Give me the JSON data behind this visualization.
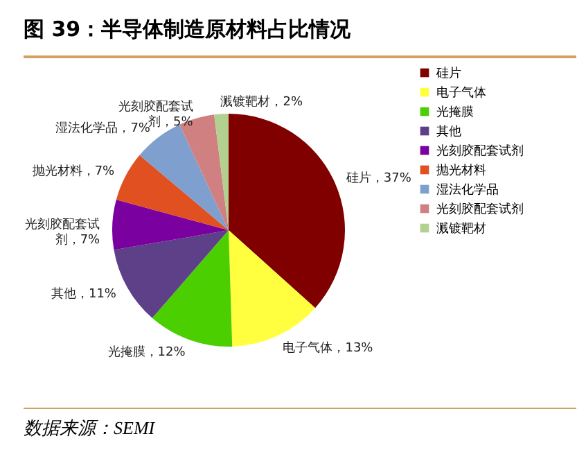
{
  "chart_data": {
    "type": "pie",
    "title": "图 39：半导体制造原材料占比情况",
    "categories": [
      "硅片",
      "电子气体",
      "光掩膜",
      "其他",
      "光刻胶配套试剂",
      "抛光材料",
      "湿法化学品",
      "光刻胶配套试剂",
      "溅镀靶材"
    ],
    "values": [
      37,
      13,
      12,
      11,
      7,
      7,
      7,
      5,
      2
    ],
    "value_labels": [
      "硅片，37%",
      "电子气体，13%",
      "光掩膜，12%",
      "其他，11%",
      "光刻胶配套试剂，7%",
      "抛光材料，7%",
      "湿法化学品，7%",
      "光刻胶配套试剂，5%",
      "溅镀靶材，2%"
    ],
    "colors": [
      "#800000",
      "#ffff40",
      "#4ccf00",
      "#5e4088",
      "#7a00a0",
      "#e05020",
      "#7f9fcf",
      "#d08080",
      "#b2d190"
    ],
    "legend": "right",
    "annotations": [
      "数据来源：SEMI"
    ]
  }
}
